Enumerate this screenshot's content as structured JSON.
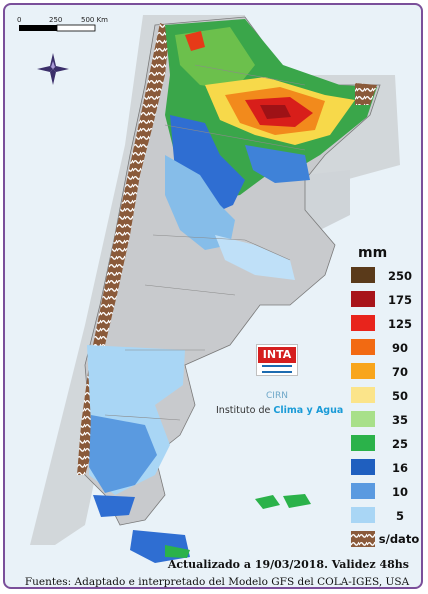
{
  "map": {
    "scale_labels": [
      "0",
      "250",
      "500 Km"
    ],
    "legend": {
      "title": "mm",
      "items": [
        {
          "label": "250",
          "color": "#5a3a1a"
        },
        {
          "label": "175",
          "color": "#a8141a"
        },
        {
          "label": "125",
          "color": "#e8241c"
        },
        {
          "label": "90",
          "color": "#f26a12"
        },
        {
          "label": "70",
          "color": "#f8a51c"
        },
        {
          "label": "50",
          "color": "#fbe48a"
        },
        {
          "label": "35",
          "color": "#a8e08a"
        },
        {
          "label": "25",
          "color": "#2bb24a"
        },
        {
          "label": "16",
          "color": "#1f5fbf"
        },
        {
          "label": "10",
          "color": "#5a9ae0"
        },
        {
          "label": "5",
          "color": "#a9d6f5"
        },
        {
          "label": "s/dato",
          "color": "#8a5a3a"
        }
      ]
    },
    "logo": {
      "inta": "INTA",
      "cirn": "CIRN",
      "instituto_prefix": "Instituto de ",
      "instituto_highlight": "Clima y Agua"
    },
    "updated_text": "Actualizado a 19/03/2018. Validez 48hs",
    "sources_text": "Fuentes: Adaptado e interpretado del Modelo GFS del COLA-IGES, USA"
  }
}
